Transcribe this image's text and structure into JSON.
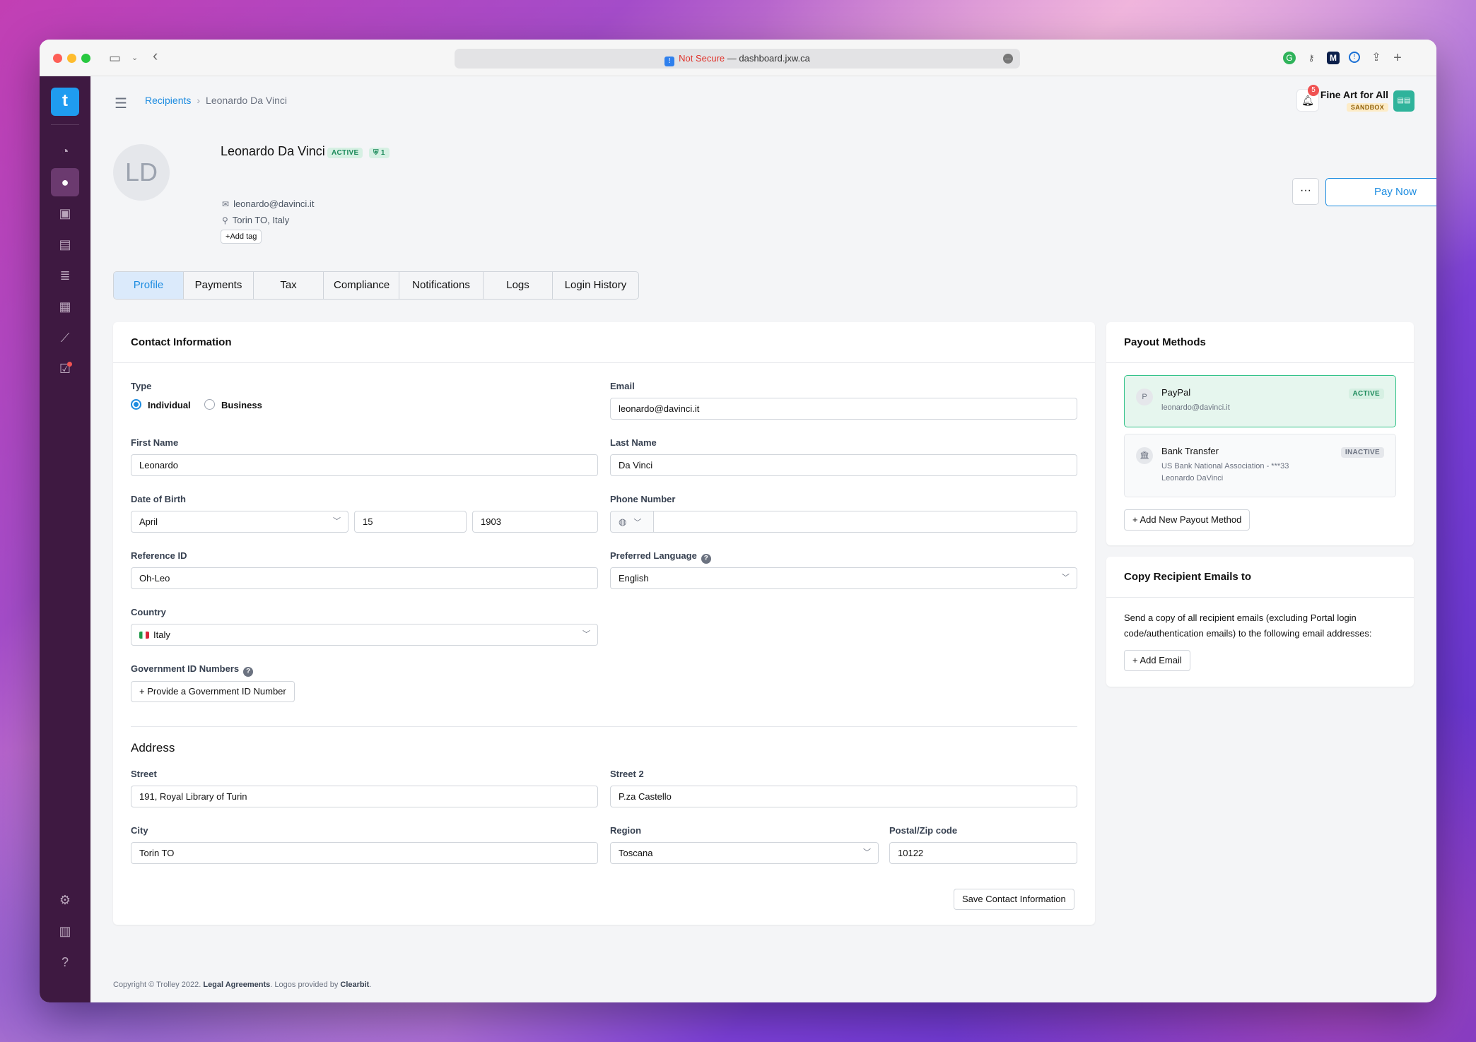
{
  "browser": {
    "url_warning": "Not Secure",
    "url_sep": " — ",
    "url_host": "dashboard.jxw.ca"
  },
  "breadcrumb": {
    "parent": "Recipients",
    "current": "Leonardo Da Vinci"
  },
  "header": {
    "notifications_count": "5",
    "org_name": "Fine Art for All",
    "org_env": "SANDBOX"
  },
  "recipient": {
    "initials": "LD",
    "name": "Leonardo Da Vinci",
    "status": "ACTIVE",
    "verified_count": "1",
    "email": "leonardo@davinci.it",
    "location": "Torin TO, Italy",
    "add_tag": "Add tag"
  },
  "actions": {
    "more": "···",
    "pay_now": "Pay Now"
  },
  "tabs": [
    {
      "label": "Profile"
    },
    {
      "label": "Payments"
    },
    {
      "label": "Tax"
    },
    {
      "label": "Compliance"
    },
    {
      "label": "Notifications"
    },
    {
      "label": "Logs"
    },
    {
      "label": "Login History"
    }
  ],
  "contact": {
    "title": "Contact Information",
    "type_label": "Type",
    "type_options": [
      "Individual",
      "Business"
    ],
    "type_selected": "Individual",
    "email_label": "Email",
    "email_value": "leonardo@davinci.it",
    "first_name_label": "First Name",
    "first_name_value": "Leonardo",
    "last_name_label": "Last Name",
    "last_name_value": "Da Vinci",
    "dob_label": "Date of Birth",
    "dob_month": "April",
    "dob_day": "15",
    "dob_year": "1903",
    "phone_label": "Phone Number",
    "phone_value": "",
    "ref_label": "Reference ID",
    "ref_value": "Oh-Leo",
    "lang_label": "Preferred Language",
    "lang_value": "English",
    "country_label": "Country",
    "country_value": "Italy",
    "gov_label": "Government ID Numbers",
    "gov_button": "Provide a Government ID Number",
    "address_title": "Address",
    "street_label": "Street",
    "street_value": "191,  Royal Library of Turin",
    "street2_label": "Street 2",
    "street2_value": "P.za Castello",
    "city_label": "City",
    "city_value": "Torin TO",
    "region_label": "Region",
    "region_value": "Toscana",
    "postal_label": "Postal/Zip code",
    "postal_value": "10122",
    "save_button": "Save Contact Information"
  },
  "payout": {
    "title": "Payout Methods",
    "methods": [
      {
        "name": "PayPal",
        "detail1": "leonardo@davinci.it",
        "detail2": "",
        "status": "ACTIVE"
      },
      {
        "name": "Bank Transfer",
        "detail1": "US Bank National Association - ***33",
        "detail2": "Leonardo DaVinci",
        "status": "INACTIVE"
      }
    ],
    "add_button": "Add New Payout Method"
  },
  "copy_emails": {
    "title": "Copy Recipient Emails to",
    "description": "Send a copy of all recipient emails (excluding Portal login code/authentication emails) to the following email addresses:",
    "add_button": "Add Email"
  },
  "footer": {
    "copyright": "Copyright © Trolley 2022. ",
    "legal": "Legal Agreements",
    "logos": ". Logos provided by ",
    "clearbit": "Clearbit",
    "end": "."
  },
  "colors": {
    "accent": "#1d8ce0",
    "sidebar": "#3e1941",
    "active_green": "#1b8a5a"
  }
}
